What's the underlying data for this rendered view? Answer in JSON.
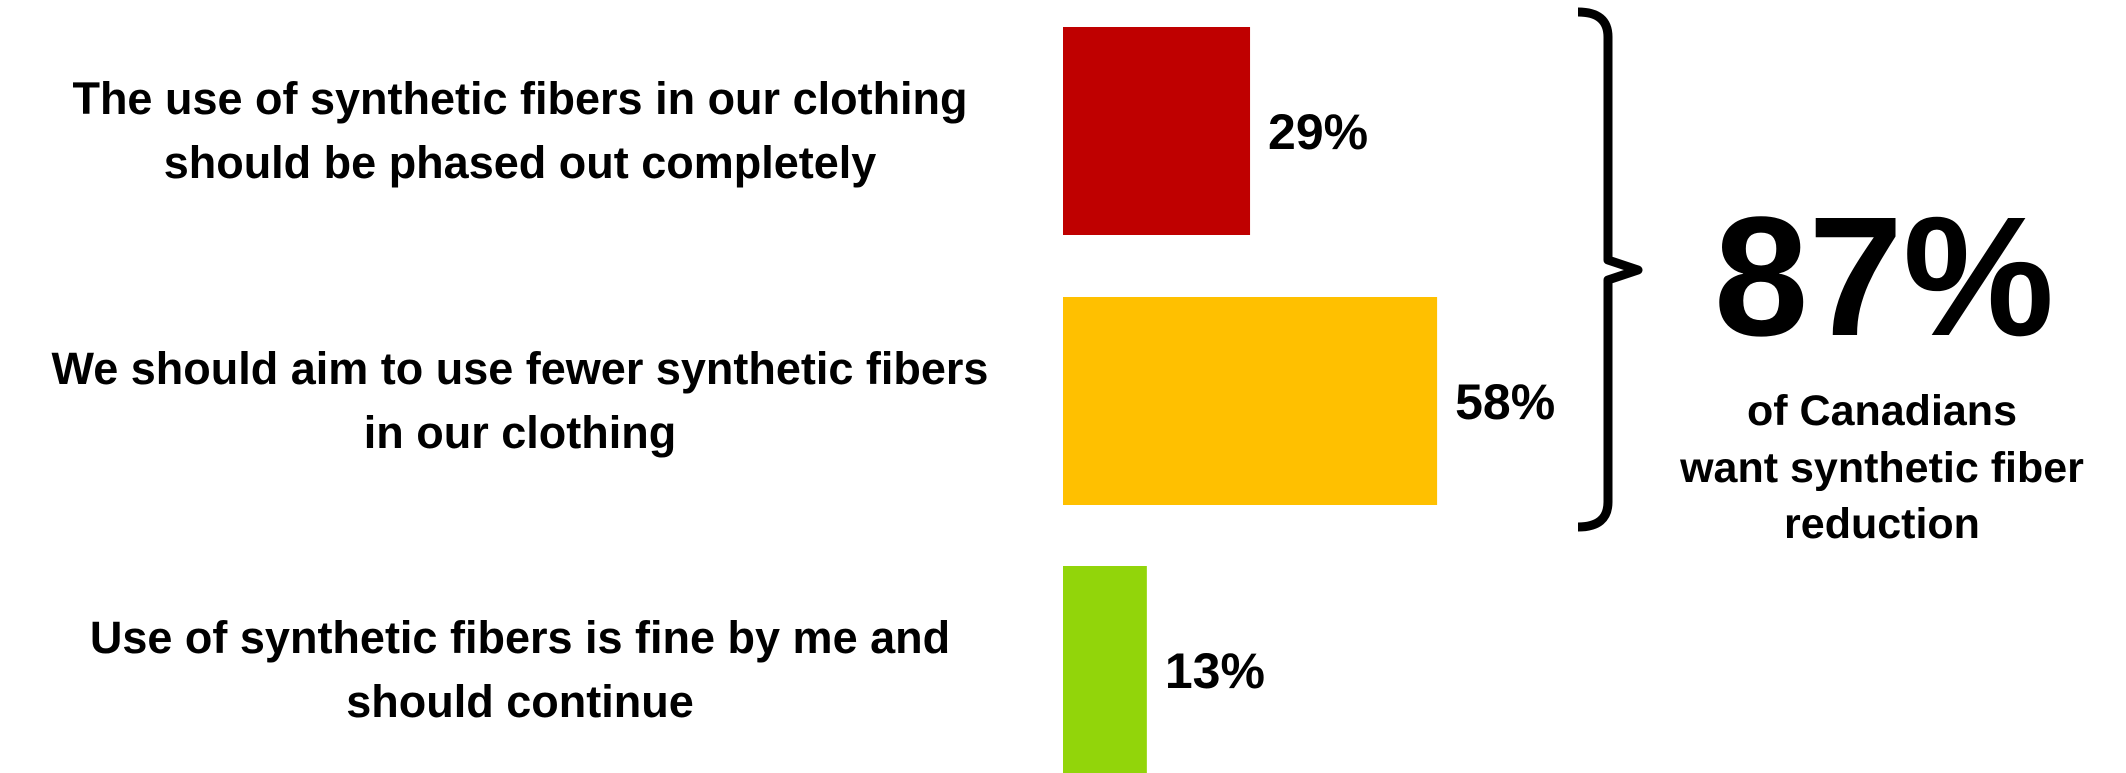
{
  "chart_data": {
    "type": "bar",
    "orientation": "horizontal",
    "title": "",
    "xlabel": "",
    "ylabel": "",
    "xlim": [
      0,
      100
    ],
    "grid": false,
    "categories": [
      [
        "The use of synthetic fibers in our clothing",
        "should be phased out completely"
      ],
      [
        "We should aim to use fewer synthetic fibers",
        "in our clothing"
      ],
      [
        "Use of synthetic fibers is fine by me and",
        "should continue"
      ]
    ],
    "values": [
      29,
      58,
      13
    ],
    "value_labels": [
      "29%",
      "58%",
      "13%"
    ],
    "colors": [
      "#bf0000",
      "#ffc000",
      "#92d50a"
    ],
    "annotation": {
      "bracket_spans": [
        0,
        1
      ],
      "value": "87%",
      "caption": [
        "of Canadians",
        "want synthetic fiber",
        "reduction"
      ]
    }
  }
}
